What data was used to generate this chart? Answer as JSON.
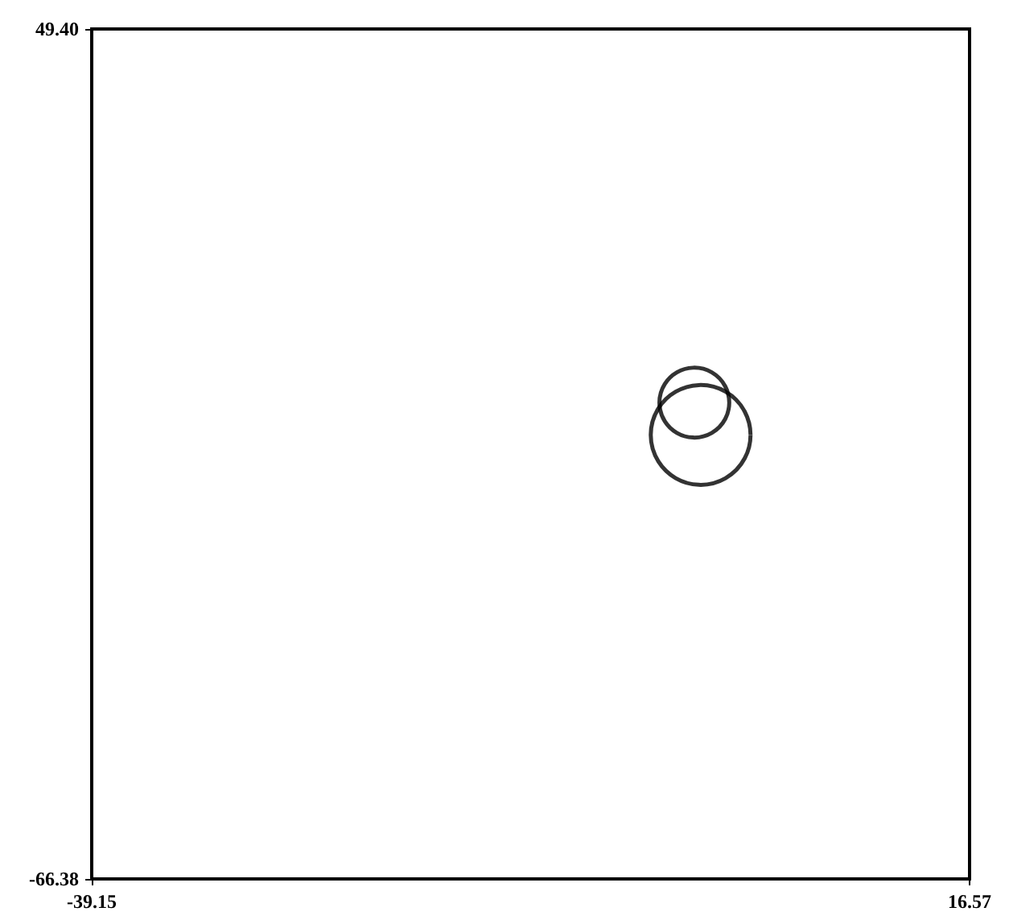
{
  "chart_data": {
    "type": "bubble",
    "series": [
      {
        "color": "#000000",
        "x": [
          -0.5,
          -0.9
        ],
        "values": [
          -5.9,
          -1.5
        ],
        "sizes": [
          1,
          0.49
        ]
      }
    ],
    "xlim": [
      -39.15,
      16.57
    ],
    "ylim": [
      -66.38,
      49.4
    ],
    "xticks": [
      {
        "value": -39.15,
        "label": "-39.15"
      },
      {
        "value": 16.57,
        "label": "16.57"
      }
    ],
    "yticks": [
      {
        "value": -66.38,
        "label": "-66.38"
      },
      {
        "value": 49.4,
        "label": "49.40"
      }
    ],
    "grid": false,
    "marker": "circle"
  }
}
